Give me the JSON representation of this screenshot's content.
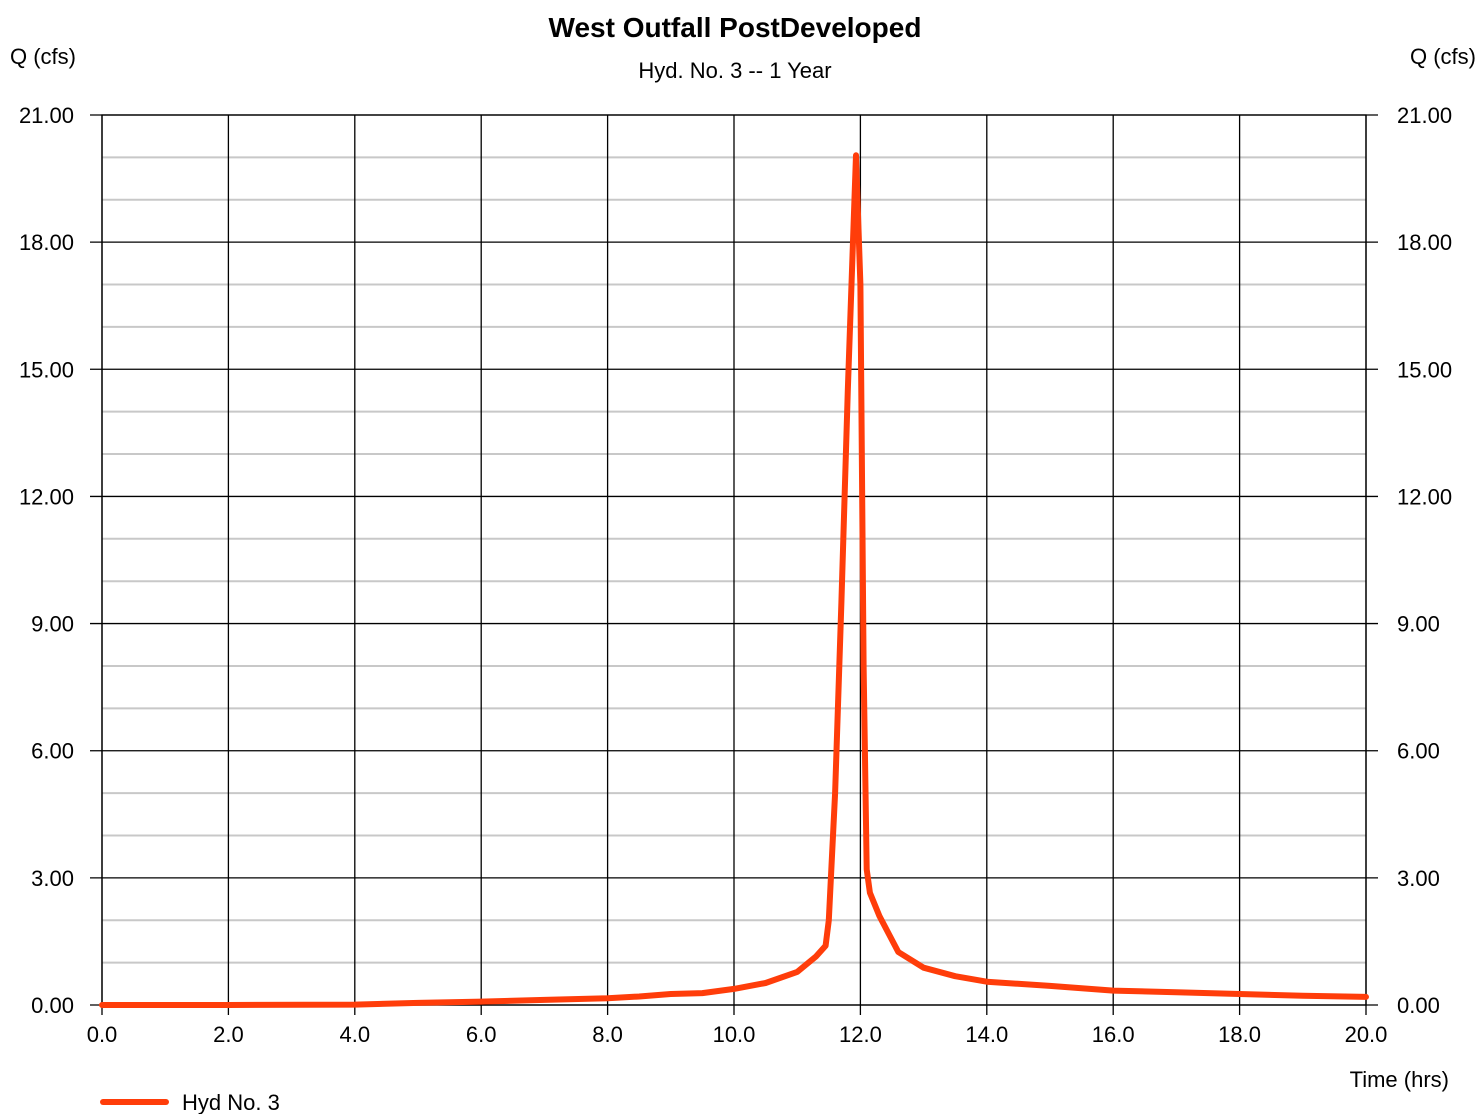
{
  "chart_data": {
    "type": "line",
    "title": "West Outfall PostDeveloped",
    "subtitle": "Hyd. No. 3 -- 1 Year",
    "ylabel_left": "Q (cfs)",
    "ylabel_right": "Q (cfs)",
    "xlabel": "Time (hrs)",
    "xlim": [
      0,
      20
    ],
    "ylim": [
      0,
      21
    ],
    "x_ticks": [
      "0.0",
      "2.0",
      "4.0",
      "6.0",
      "8.0",
      "10.0",
      "12.0",
      "14.0",
      "16.0",
      "18.0",
      "20.0"
    ],
    "y_ticks": [
      "0.00",
      "3.00",
      "6.00",
      "9.00",
      "12.00",
      "15.00",
      "18.00",
      "21.00"
    ],
    "grid": true,
    "legend_position": "bottom-left",
    "series": [
      {
        "name": "Hyd No. 3",
        "color": "#FF3D0A",
        "x": [
          0,
          2,
          4,
          5,
          6,
          7,
          8,
          8.5,
          9,
          9.5,
          10,
          10.5,
          11,
          11.3,
          11.45,
          11.5,
          11.6,
          11.7,
          11.8,
          11.93,
          12.0,
          12.05,
          12.1,
          12.15,
          12.3,
          12.6,
          13.0,
          13.5,
          14.0,
          15.0,
          16.0,
          17.0,
          18.0,
          19.0,
          20.0
        ],
        "y": [
          0.0,
          0.0,
          0.01,
          0.05,
          0.08,
          0.12,
          0.16,
          0.2,
          0.26,
          0.28,
          0.38,
          0.52,
          0.78,
          1.15,
          1.4,
          2.0,
          5.0,
          9.5,
          14.5,
          20.05,
          17.0,
          8.0,
          3.2,
          2.65,
          2.1,
          1.25,
          0.88,
          0.68,
          0.55,
          0.45,
          0.34,
          0.3,
          0.26,
          0.22,
          0.19
        ]
      }
    ]
  }
}
